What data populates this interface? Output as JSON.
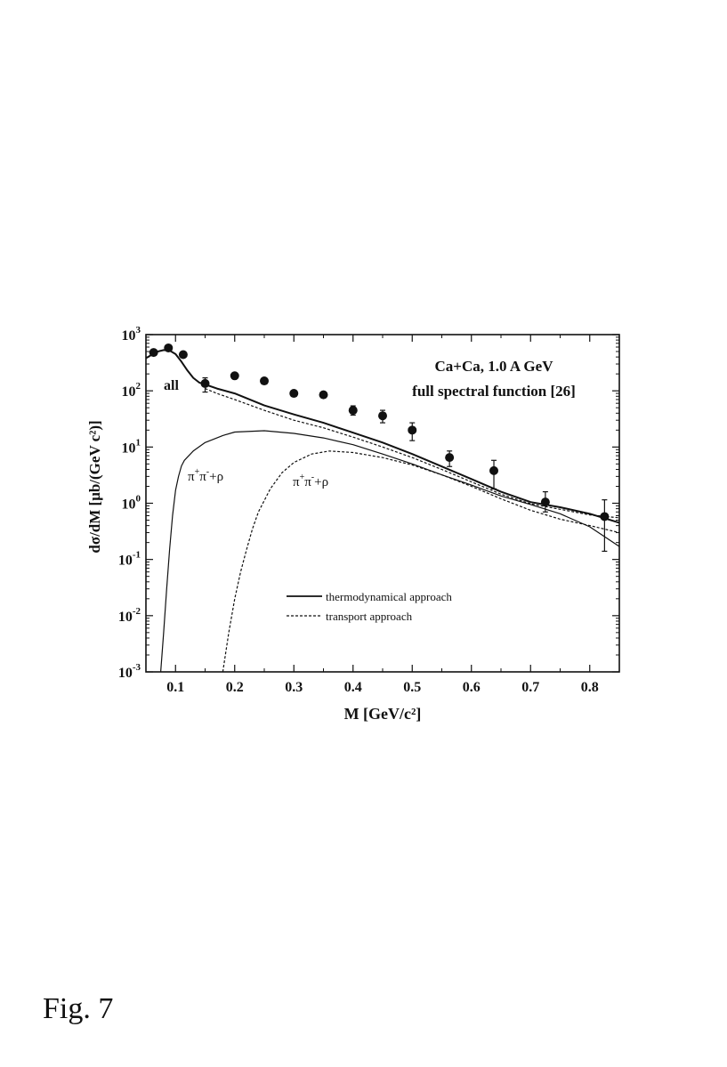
{
  "chart_data": {
    "type": "line",
    "annotation_lines": [
      "Ca+Ca,  1.0 A GeV",
      "full spectral function [26]"
    ],
    "xlabel": "M [GeV/c²]",
    "ylabel": "dσ/dM  [μb/(GeV c²)]",
    "xlim": [
      0.05,
      0.85
    ],
    "ylim": [
      0.001,
      1000
    ],
    "y_scale": "log",
    "x_ticks": [
      0.1,
      0.2,
      0.3,
      0.4,
      0.5,
      0.6,
      0.7,
      0.8
    ],
    "x_tick_labels": [
      "0.1",
      "0.2",
      "0.3",
      "0.4",
      "0.5",
      "0.6",
      "0.7",
      "0.8"
    ],
    "y_ticks": [
      {
        "value": 0.001,
        "base": "10",
        "exp": "-3"
      },
      {
        "value": 0.01,
        "base": "10",
        "exp": "-2"
      },
      {
        "value": 0.1,
        "base": "10",
        "exp": "-1"
      },
      {
        "value": 1,
        "base": "10",
        "exp": "0"
      },
      {
        "value": 10,
        "base": "10",
        "exp": "1"
      },
      {
        "value": 100,
        "base": "10",
        "exp": "2"
      },
      {
        "value": 1000,
        "base": "10",
        "exp": "3"
      }
    ],
    "curve_labels": {
      "all": "all",
      "pipi_solid": {
        "pi": "π",
        "plus": "+",
        "minus": "-",
        "tail": "+ρ"
      },
      "pipi_dashed": {
        "pi": "π",
        "plus": "+",
        "minus": "-",
        "tail": "+ρ"
      }
    },
    "legend": [
      {
        "label": "thermodynamical approach",
        "style": "solid"
      },
      {
        "label": "transport approach",
        "style": "dashed"
      }
    ],
    "legend_placement": "lower-center",
    "series": [
      {
        "style": "solid",
        "width": 2.0,
        "x": [
          0.05,
          0.06,
          0.07,
          0.08,
          0.09,
          0.1,
          0.11,
          0.12,
          0.13,
          0.14,
          0.15,
          0.17,
          0.2,
          0.25,
          0.3,
          0.35,
          0.4,
          0.45,
          0.5,
          0.55,
          0.6,
          0.65,
          0.7,
          0.75,
          0.8,
          0.85
        ],
        "y": [
          380,
          440,
          500,
          530,
          520,
          450,
          330,
          230,
          170,
          140,
          130,
          110,
          90,
          55,
          38,
          27,
          18,
          12,
          7.5,
          4.5,
          2.7,
          1.6,
          1.05,
          0.85,
          0.65,
          0.45
        ]
      },
      {
        "style": "dashed",
        "width": 1.2,
        "x": [
          0.15,
          0.17,
          0.2,
          0.25,
          0.3,
          0.35,
          0.4,
          0.45,
          0.5,
          0.55,
          0.6,
          0.65,
          0.7,
          0.75,
          0.8,
          0.85
        ],
        "y": [
          110,
          90,
          70,
          45,
          30,
          22,
          15,
          10,
          6.5,
          4.0,
          2.4,
          1.45,
          0.98,
          0.78,
          0.62,
          0.55
        ]
      },
      {
        "style": "solid",
        "width": 1.2,
        "x": [
          0.075,
          0.08,
          0.085,
          0.09,
          0.095,
          0.1,
          0.105,
          0.11,
          0.115,
          0.12,
          0.13,
          0.15,
          0.18,
          0.2,
          0.25,
          0.3,
          0.35,
          0.4,
          0.45,
          0.5,
          0.55,
          0.6,
          0.65,
          0.7,
          0.75,
          0.8,
          0.85
        ],
        "y": [
          0.001,
          0.005,
          0.03,
          0.15,
          0.6,
          1.7,
          3.0,
          4.6,
          5.8,
          6.6,
          8.5,
          12,
          16,
          18.5,
          19.5,
          17.5,
          14.5,
          11,
          7.5,
          5.0,
          3.2,
          2.1,
          1.35,
          0.95,
          0.65,
          0.38,
          0.17
        ]
      },
      {
        "style": "dashed",
        "width": 1.2,
        "x": [
          0.18,
          0.19,
          0.2,
          0.21,
          0.22,
          0.23,
          0.24,
          0.26,
          0.28,
          0.3,
          0.33,
          0.36,
          0.4,
          0.45,
          0.5,
          0.55,
          0.6,
          0.65,
          0.7,
          0.75,
          0.8,
          0.85
        ],
        "y": [
          0.001,
          0.005,
          0.02,
          0.06,
          0.15,
          0.35,
          0.7,
          1.8,
          3.5,
          5.3,
          7.5,
          8.5,
          8.0,
          6.5,
          4.8,
          3.2,
          2.0,
          1.2,
          0.75,
          0.52,
          0.4,
          0.3
        ]
      }
    ],
    "data_points": {
      "x": [
        0.063,
        0.088,
        0.113,
        0.15,
        0.2,
        0.25,
        0.3,
        0.35,
        0.4,
        0.45,
        0.5,
        0.563,
        0.638,
        0.725,
        0.825
      ],
      "y": [
        480,
        580,
        440,
        135,
        185,
        150,
        90,
        85,
        45,
        36,
        20,
        6.5,
        3.8,
        1.05,
        0.58
      ],
      "err_low": [
        0,
        0,
        0,
        95,
        0,
        0,
        0,
        0,
        37,
        27,
        13,
        4.5,
        1.8,
        0.7,
        0.14
      ],
      "err_high": [
        0,
        0,
        0,
        170,
        0,
        0,
        0,
        0,
        54,
        45,
        27,
        8.5,
        5.8,
        1.6,
        1.15
      ]
    }
  },
  "figure_label": "Fig. 7"
}
